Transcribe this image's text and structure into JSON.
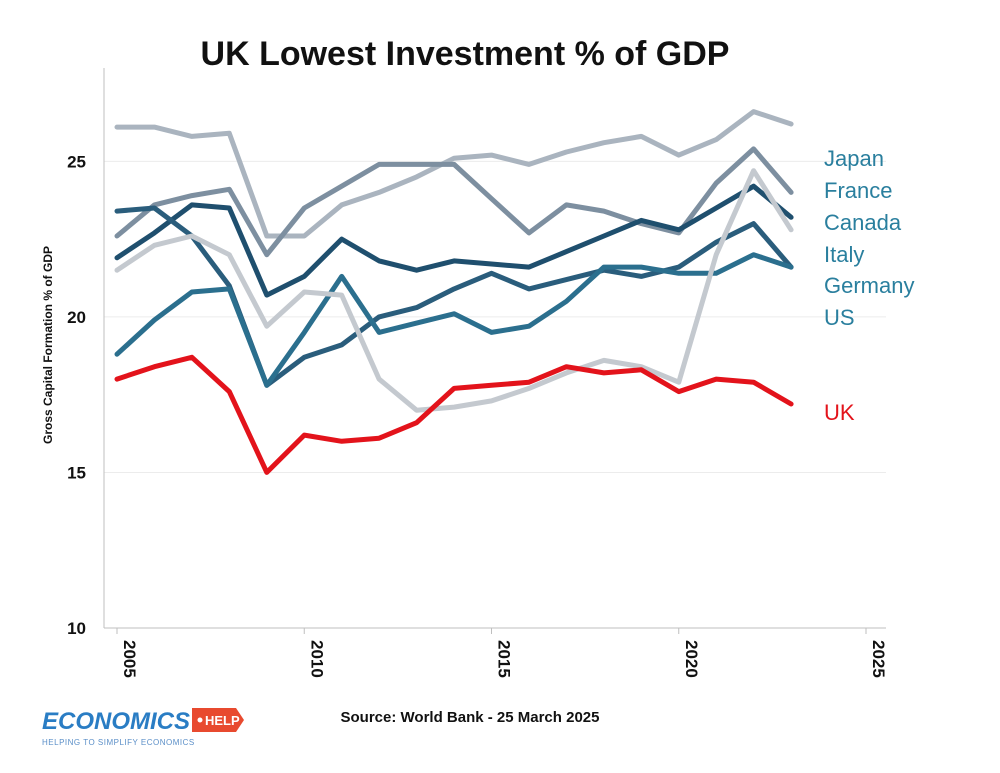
{
  "chart_data": {
    "type": "line",
    "title": "UK Lowest Investment % of GDP",
    "xlabel": "",
    "ylabel": "Gross Capital Formation % of GDP",
    "xlim": [
      2005,
      2025
    ],
    "ylim": [
      10,
      28
    ],
    "x_ticks": [
      "2005",
      "2010",
      "2015",
      "2020",
      "2025"
    ],
    "y_ticks": [
      "10",
      "15",
      "20",
      "25"
    ],
    "grid": true,
    "x": [
      2005,
      2006,
      2007,
      2008,
      2009,
      2010,
      2011,
      2012,
      2013,
      2014,
      2015,
      2016,
      2017,
      2018,
      2019,
      2020,
      2021,
      2022,
      2023
    ],
    "series": [
      {
        "name": "Japan",
        "color": "#aab4bf",
        "label_color": "#2a7f9e",
        "values": [
          26.1,
          26.1,
          25.8,
          25.9,
          22.6,
          22.6,
          23.6,
          24.0,
          24.5,
          25.1,
          25.2,
          24.9,
          25.3,
          25.6,
          25.8,
          25.2,
          25.7,
          26.6,
          26.2
        ]
      },
      {
        "name": "France",
        "color": "#7d8fa0",
        "label_color": "#2a7f9e",
        "values": [
          22.6,
          23.6,
          23.9,
          24.1,
          22.0,
          23.5,
          24.2,
          24.9,
          24.9,
          24.9,
          23.8,
          22.7,
          23.6,
          23.4,
          23.0,
          22.7,
          24.3,
          25.4,
          24.0
        ]
      },
      {
        "name": "Canada",
        "color": "#1f4f6e",
        "label_color": "#2a7f9e",
        "values": [
          21.9,
          22.7,
          23.6,
          23.5,
          20.7,
          21.3,
          22.5,
          21.8,
          21.5,
          21.8,
          21.7,
          21.6,
          22.1,
          22.6,
          23.1,
          22.8,
          23.5,
          24.2,
          23.2
        ]
      },
      {
        "name": "Italy",
        "color": "#2a5d7c",
        "label_color": "#2a7f9e",
        "values": [
          23.4,
          23.5,
          22.6,
          21.0,
          17.8,
          18.7,
          19.1,
          20.0,
          20.3,
          20.9,
          21.4,
          20.9,
          21.2,
          21.5,
          21.3,
          21.6,
          22.4,
          23.0,
          21.6
        ]
      },
      {
        "name": "Germany",
        "color": "#2b6f8e",
        "label_color": "#2a7f9e",
        "values": [
          18.8,
          19.9,
          20.8,
          20.9,
          17.8,
          19.5,
          21.3,
          19.5,
          19.8,
          20.1,
          19.5,
          19.7,
          20.5,
          21.6,
          21.6,
          21.4,
          21.4,
          22.0,
          21.6
        ]
      },
      {
        "name": "US",
        "color": "#c4c9cf",
        "label_color": "#2a7f9e",
        "values": [
          21.5,
          22.3,
          22.6,
          22.0,
          19.7,
          20.8,
          20.7,
          18.0,
          17.0,
          17.1,
          17.3,
          17.7,
          18.2,
          18.6,
          18.4,
          17.9,
          22.0,
          24.7,
          22.8
        ]
      },
      {
        "name": "UK",
        "color": "#e3131b",
        "label_color": "#e3131b",
        "values": [
          18.0,
          18.4,
          18.7,
          17.6,
          15.0,
          16.2,
          16.0,
          16.1,
          16.6,
          17.7,
          17.8,
          17.9,
          18.4,
          18.2,
          18.3,
          17.6,
          18.0,
          17.9,
          17.2
        ]
      }
    ],
    "source": "Source: World Bank - 25 March 2025"
  },
  "branding": {
    "logo_text": "ECONOMICS",
    "logo_badge": "HELP",
    "tagline": "HELPING TO SIMPLIFY ECONOMICS"
  }
}
